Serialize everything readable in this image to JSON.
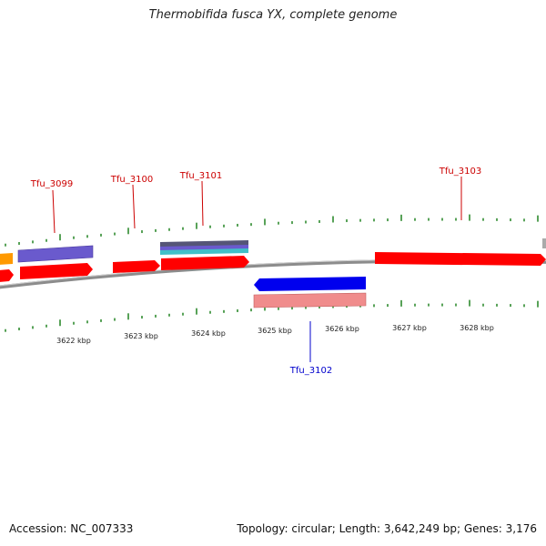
{
  "title": "Thermobifida fusca YX, complete genome",
  "footer": {
    "accession": "Accession: NC_007333",
    "summary": "Topology: circular; Length: 3,642,249 bp; Genes: 3,176"
  },
  "colors": {
    "forward_gene": "#ff0000",
    "reverse_gene": "#0000ee",
    "reverse_gene_light": "#f08c8c",
    "purple_feature": "#6a5acd",
    "orange_feature": "#ff9900",
    "teal_feature": "#40c0c8",
    "forward_label": "#cc0000",
    "reverse_label": "#0000cc",
    "tick": "#2e8b2e",
    "backbone": "#888888"
  },
  "scale_ticks": [
    {
      "label": "3622 kbp"
    },
    {
      "label": "3623 kbp"
    },
    {
      "label": "3624 kbp"
    },
    {
      "label": "3625 kbp"
    },
    {
      "label": "3626 kbp"
    },
    {
      "label": "3627 kbp"
    },
    {
      "label": "3628 kbp"
    }
  ],
  "gene_labels": [
    {
      "name": "Tfu_3099",
      "strand": "forward"
    },
    {
      "name": "Tfu_3100",
      "strand": "forward"
    },
    {
      "name": "Tfu_3101",
      "strand": "forward"
    },
    {
      "name": "Tfu_3103",
      "strand": "forward"
    },
    {
      "name": "Tfu_3102",
      "strand": "reverse"
    }
  ]
}
